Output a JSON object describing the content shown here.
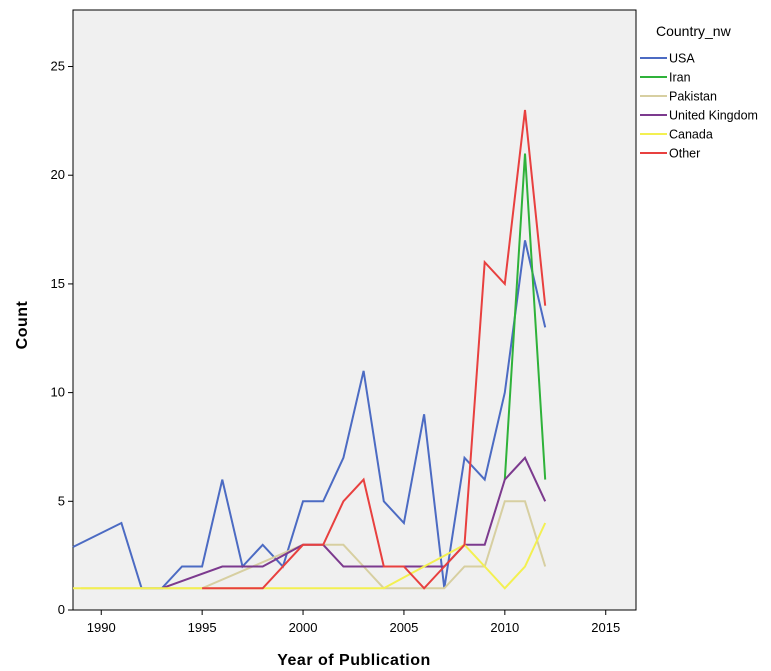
{
  "chart_data": {
    "type": "line",
    "title": "",
    "xlabel": "Year of Publication",
    "ylabel": "Count",
    "xlim": [
      1988.6,
      2016.5
    ],
    "ylim": [
      0,
      27.6
    ],
    "xticks": [
      1990,
      1995,
      2000,
      2005,
      2010,
      2015
    ],
    "yticks": [
      0,
      5,
      10,
      15,
      20,
      25
    ],
    "xtick_labels": [
      "1990",
      "1995",
      "2000",
      "2005",
      "2010",
      "2015"
    ],
    "ytick_labels": [
      "0",
      "5",
      "10",
      "15",
      "20",
      "25"
    ],
    "grid": false,
    "legend_title": "Country_nw",
    "legend_position": "right",
    "series": [
      {
        "name": "USA",
        "color": "#4c6bc3",
        "x": [
          1988.6,
          1991,
          1992,
          1993,
          1994,
          1995,
          1996,
          1997,
          1998,
          1999,
          2000,
          2001,
          2002,
          2003,
          2004,
          2005,
          2006,
          2007,
          2008,
          2009,
          2010,
          2011,
          2012
        ],
        "y": [
          2.9,
          4,
          1,
          1,
          2,
          2,
          6,
          2,
          3,
          2,
          5,
          5,
          7,
          11,
          5,
          4,
          9,
          1,
          7,
          6,
          10,
          17,
          13
        ]
      },
      {
        "name": "Iran",
        "color": "#2fb23a",
        "x": [
          2010,
          2011,
          2012
        ],
        "y": [
          6,
          21,
          6
        ]
      },
      {
        "name": "Pakistan",
        "color": "#d7cfa1",
        "x": [
          1989,
          1993,
          1994,
          1995,
          2000,
          2001,
          2002,
          2003,
          2004,
          2005,
          2006,
          2007,
          2008,
          2009,
          2010,
          2011,
          2012
        ],
        "y": [
          1,
          1,
          1,
          1,
          3,
          3,
          3,
          2,
          1,
          1,
          1,
          1,
          2,
          2,
          5,
          5,
          2
        ]
      },
      {
        "name": "United Kingdom",
        "color": "#7c3a8e",
        "x": [
          1993,
          1996,
          1998,
          2000,
          2001,
          2002,
          2003,
          2004,
          2005,
          2006,
          2007,
          2008,
          2009,
          2010,
          2011,
          2012
        ],
        "y": [
          1,
          2,
          2,
          3,
          3,
          2,
          2,
          2,
          2,
          2,
          2,
          3,
          3,
          6,
          7,
          5
        ]
      },
      {
        "name": "Canada",
        "color": "#f3f051",
        "x": [
          1988.6,
          2004,
          2005,
          2006,
          2007,
          2008,
          2009,
          2010,
          2011,
          2012
        ],
        "y": [
          1,
          1,
          1.5,
          2,
          2.5,
          3,
          2,
          1,
          2,
          4
        ]
      },
      {
        "name": "Other",
        "color": "#e8403f",
        "x": [
          1995,
          1998,
          2000,
          2001,
          2002,
          2003,
          2004,
          2005,
          2006,
          2007,
          2008,
          2009,
          2010,
          2011,
          2012
        ],
        "y": [
          1,
          1,
          3,
          3,
          5,
          6,
          2,
          2,
          1,
          2,
          3,
          16,
          15,
          23,
          14
        ]
      }
    ]
  }
}
